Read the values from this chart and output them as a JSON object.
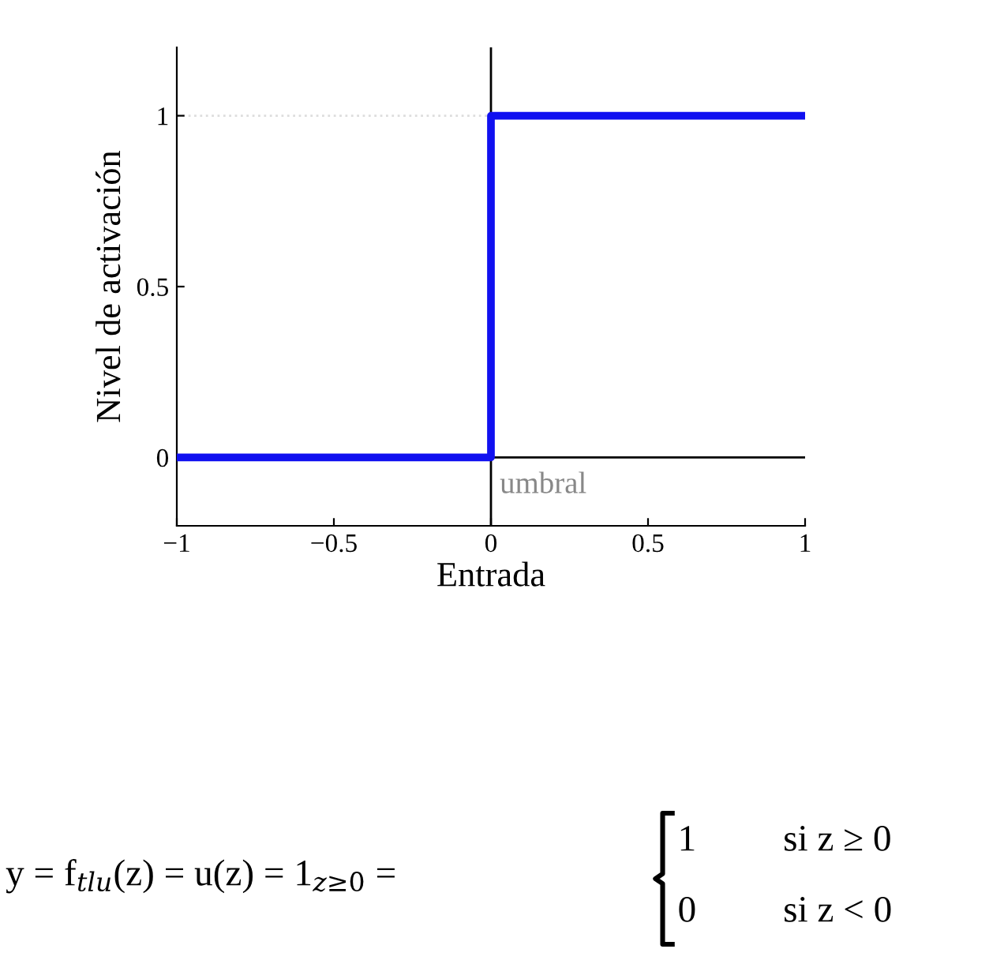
{
  "chart_data": {
    "type": "step",
    "xlabel": "Entrada",
    "ylabel": "Nivel de activación",
    "x": [
      -1,
      0,
      1
    ],
    "series": [
      {
        "color": "#1010f0",
        "values": [
          0,
          1,
          1
        ]
      }
    ],
    "xlim": [
      -1,
      1
    ],
    "ylim": [
      -0.2,
      1.2
    ],
    "xticks": [
      {
        "value": -1,
        "label": "−1"
      },
      {
        "value": -0.5,
        "label": "−0.5"
      },
      0,
      0.5,
      1
    ],
    "yticks": [
      0,
      0.5,
      1
    ],
    "ref_lines": [
      {
        "axis": "x",
        "value": 0,
        "label": "umbral",
        "color": "#000000"
      },
      {
        "axis": "y",
        "value": 0,
        "color": "#000000"
      },
      {
        "axis": "y",
        "value": 1,
        "color": "#dddddd",
        "line_style": "dotted"
      }
    ],
    "grid": false,
    "legend": false,
    "annotations": [
      "y = f$_{tlu}$(z) = u(z) = 1$_{z≥0}$ =",
      "1",
      "si z ≥ 0",
      "0",
      "si z < 0"
    ]
  }
}
